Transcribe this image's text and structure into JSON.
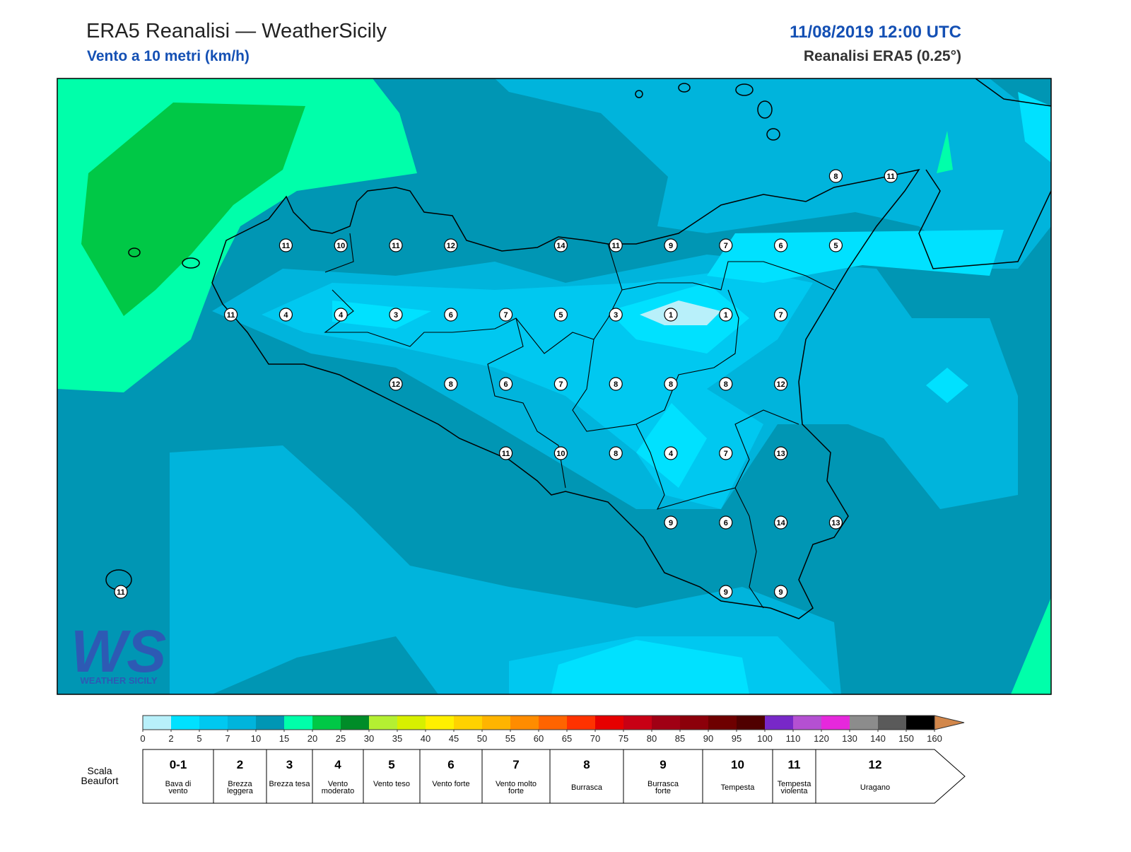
{
  "header": {
    "title": "ERA5 Reanalisi — WeatherSicily",
    "subtitle": "Vento a 10 metri (km/h)",
    "datetime": "11/08/2019 12:00 UTC",
    "source": "Reanalisi ERA5 (0.25°)"
  },
  "stations": [
    8,
    11,
    11,
    10,
    11,
    12,
    14,
    11,
    9,
    7,
    6,
    5,
    11,
    4,
    4,
    3,
    6,
    7,
    5,
    3,
    1,
    1,
    7,
    12,
    8,
    6,
    7,
    8,
    8,
    8,
    12,
    11,
    10,
    8,
    4,
    7,
    13,
    9,
    6,
    14,
    13,
    11,
    9,
    9
  ],
  "logo": {
    "mark": "WS",
    "text": "WEATHER SICILY"
  },
  "colorbar": {
    "ticks": [
      0,
      2,
      5,
      7,
      10,
      15,
      20,
      25,
      30,
      35,
      40,
      45,
      50,
      55,
      60,
      65,
      70,
      75,
      80,
      85,
      90,
      95,
      100,
      110,
      120,
      130,
      140,
      150,
      160
    ],
    "colors": [
      "#b8f0fa",
      "#00e1ff",
      "#00c8f0",
      "#00b4dc",
      "#0096b4",
      "#00ffaa",
      "#00c846",
      "#008c28",
      "#b4f032",
      "#d7f000",
      "#fff000",
      "#ffd200",
      "#ffb400",
      "#ff8c00",
      "#ff6400",
      "#ff3200",
      "#e60000",
      "#c80014",
      "#a00014",
      "#8c000a",
      "#6e0000",
      "#500000",
      "#7828c8",
      "#b450d2",
      "#e628dc",
      "#8c8c8c",
      "#5a5a5a",
      "#000000",
      "#824628",
      "#d2874b"
    ],
    "extend_color": "#d2874b"
  },
  "beaufort_label": "Scala Beaufort",
  "beaufort": [
    {
      "force": "0-1",
      "description": "Bava di vento"
    },
    {
      "force": "2",
      "description": "Brezza leggera"
    },
    {
      "force": "3",
      "description": "Brezza tesa"
    },
    {
      "force": "4",
      "description": "Vento moderato"
    },
    {
      "force": "5",
      "description": "Vento teso"
    },
    {
      "force": "6",
      "description": "Vento forte"
    },
    {
      "force": "7",
      "description": "Vento molto forte"
    },
    {
      "force": "8",
      "description": "Burrasca"
    },
    {
      "force": "9",
      "description": "Burrasca forte"
    },
    {
      "force": "10",
      "description": "Tempesta"
    },
    {
      "force": "11",
      "description": "Tempesta violenta"
    },
    {
      "force": "12",
      "description": "Uragano"
    }
  ]
}
